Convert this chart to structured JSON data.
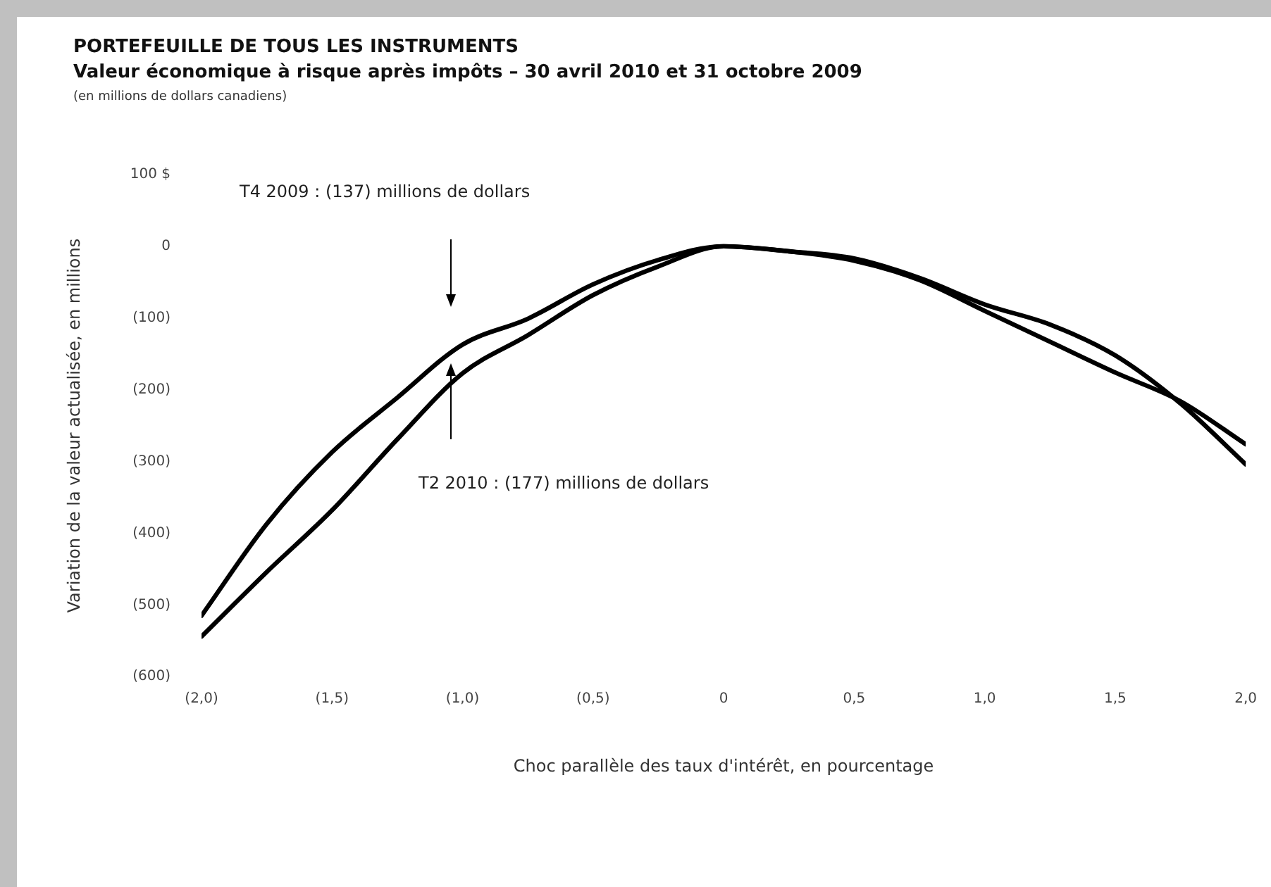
{
  "chart_data": {
    "type": "line",
    "title": "PORTEFEUILLE DE TOUS LES INSTRUMENTS",
    "subtitle": "Valeur économique à risque après impôts – 30 avril 2010 et 31 octobre 2009",
    "xlabel": "Choc parallèle des taux d'intérêt, en pourcentage",
    "ylabel": "Variation de la valeur actualisée, en millions",
    "annotations": [
      "(en millions de dollars canadiens)",
      "T4 2009 : (137) millions de dollars",
      "T2 2010 : (177) millions de dollars"
    ],
    "x": [
      -2,
      -1.75,
      -1.5,
      -1.25,
      -1,
      -0.75,
      -0.5,
      -0.25,
      0,
      0.25,
      0.5,
      0.75,
      1,
      1.25,
      1.5,
      1.75,
      2
    ],
    "series": [
      {
        "color": "#000000",
        "values": [
          -515,
          -387,
          -287,
          -211,
          -137,
          -101,
          -53,
          -19,
          0,
          -7,
          -20,
          -47,
          -90,
          -133,
          -176,
          -216,
          -276
        ]
      },
      {
        "color": "#000000",
        "values": [
          -544,
          -454,
          -368,
          -269,
          -177,
          -124,
          -68,
          -28,
          0,
          -7,
          -17,
          -44,
          -81,
          -109,
          -152,
          -219,
          -304
        ]
      }
    ],
    "xlim": [
      -2,
      2
    ],
    "xticks": [
      {
        "value": -2,
        "label": "(2,0)"
      },
      {
        "value": -1.5,
        "label": "(1,5)"
      },
      {
        "value": -1,
        "label": "(1,0)"
      },
      {
        "value": -0.5,
        "label": "(0,5)"
      },
      0,
      {
        "value": 0.5,
        "label": "0,5"
      },
      {
        "value": 1,
        "label": "1,0"
      },
      {
        "value": 1.5,
        "label": "1,5"
      },
      {
        "value": 2,
        "label": "2,0"
      }
    ],
    "ylim": [
      -600,
      100
    ],
    "yticks": [
      {
        "value": 100,
        "label": "100 $"
      },
      0,
      {
        "value": -100,
        "label": "(100)"
      },
      {
        "value": -200,
        "label": "(200)"
      },
      {
        "value": -300,
        "label": "(300)"
      },
      {
        "value": -400,
        "label": "(400)"
      },
      {
        "value": -500,
        "label": "(500)"
      },
      {
        "value": -600,
        "label": "(600)"
      }
    ],
    "grid": false,
    "legend": false,
    "marker": "none",
    "line_style": "solid"
  }
}
